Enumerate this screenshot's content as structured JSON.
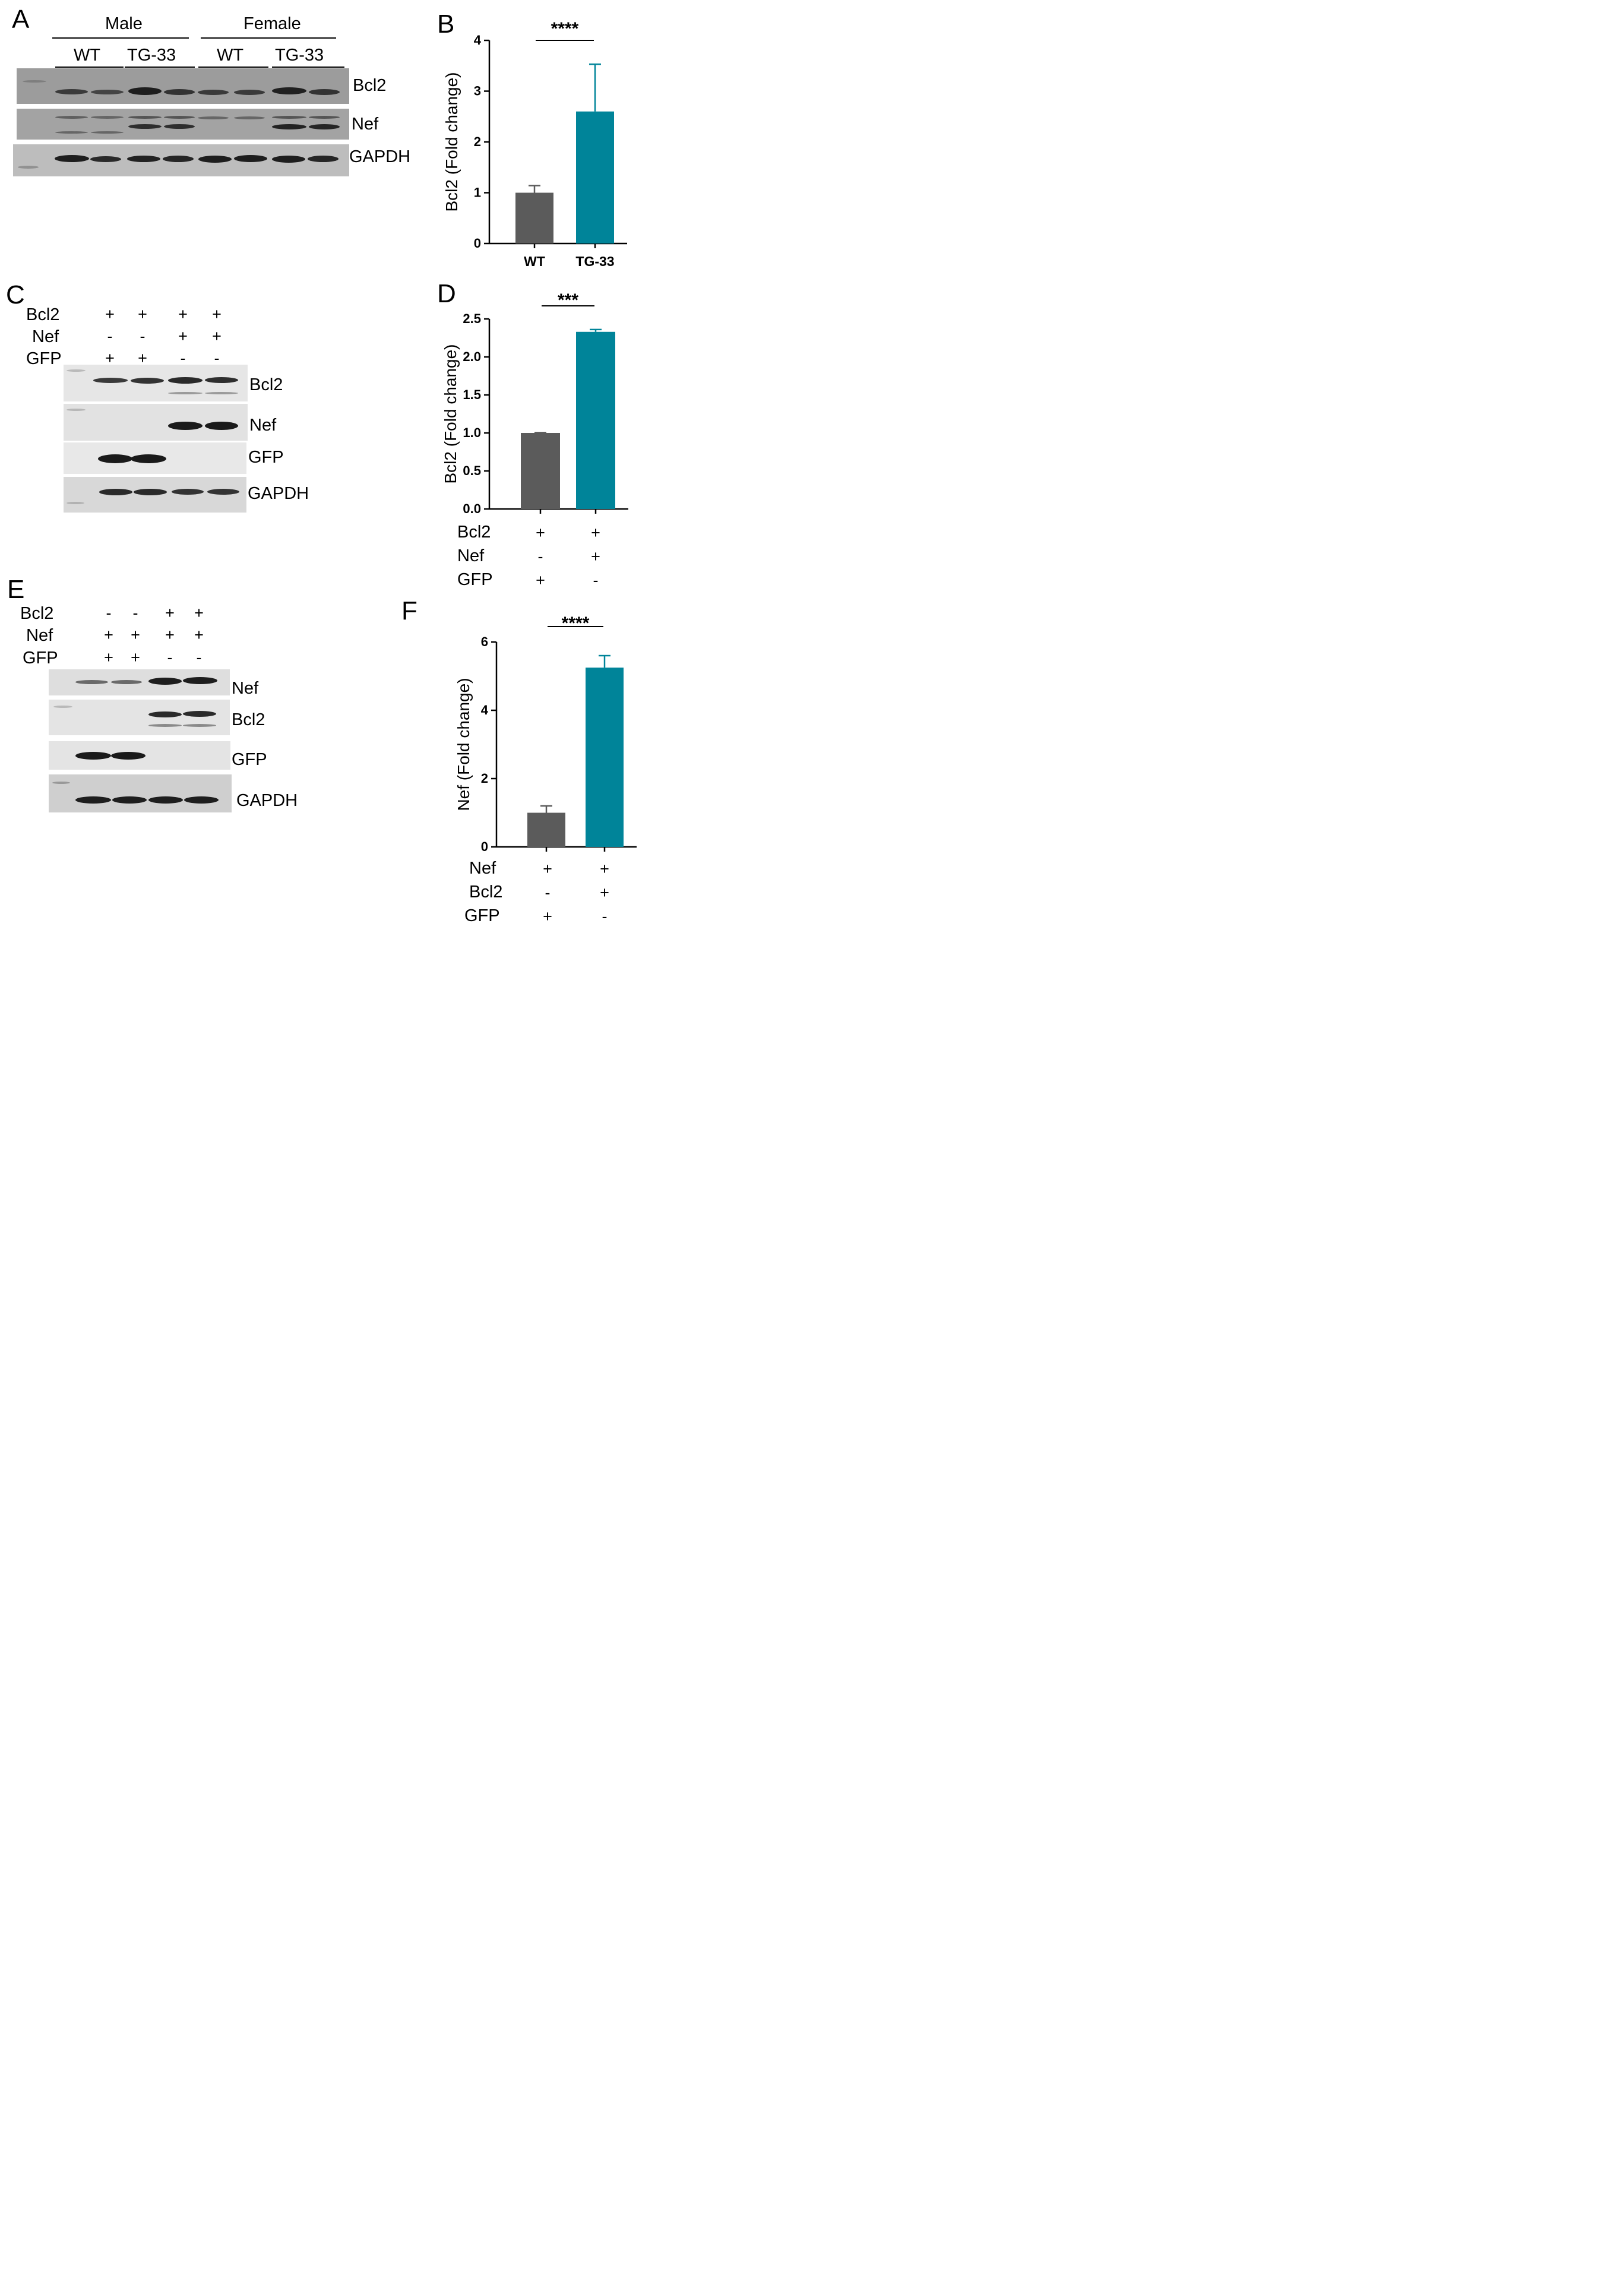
{
  "panels": {
    "A": {
      "letter": "A",
      "sex_groups": [
        "Male",
        "Female"
      ],
      "genotypes": [
        "WT",
        "TG-33",
        "WT",
        "TG-33"
      ],
      "blots": [
        "Bcl2",
        "Nef",
        "GAPDH"
      ]
    },
    "B": {
      "letter": "B",
      "significance": "****"
    },
    "C": {
      "letter": "C",
      "conditions": [
        {
          "name": "Bcl2",
          "signs": [
            "+",
            "+",
            "+",
            "+"
          ]
        },
        {
          "name": "Nef",
          "signs": [
            "-",
            "-",
            "+",
            "+"
          ]
        },
        {
          "name": "GFP",
          "signs": [
            "+",
            "+",
            "-",
            "-"
          ]
        }
      ],
      "blots": [
        "Bcl2",
        "Nef",
        "GFP",
        "GAPDH"
      ]
    },
    "D": {
      "letter": "D",
      "significance": "***",
      "conditions": [
        {
          "name": "Bcl2",
          "signs": [
            "+",
            "+"
          ]
        },
        {
          "name": "Nef",
          "signs": [
            "-",
            "+"
          ]
        },
        {
          "name": "GFP",
          "signs": [
            "+",
            "-"
          ]
        }
      ]
    },
    "E": {
      "letter": "E",
      "conditions": [
        {
          "name": "Bcl2",
          "signs": [
            "-",
            "-",
            "+",
            "+"
          ]
        },
        {
          "name": "Nef",
          "signs": [
            "+",
            "+",
            "+",
            "+"
          ]
        },
        {
          "name": "GFP",
          "signs": [
            "+",
            "+",
            "-",
            "-"
          ]
        }
      ],
      "blots": [
        "Nef",
        "Bcl2",
        "GFP",
        "GAPDH"
      ]
    },
    "F": {
      "letter": "F",
      "significance": "****",
      "conditions": [
        {
          "name": "Nef",
          "signs": [
            "+",
            "+"
          ]
        },
        {
          "name": "Bcl2",
          "signs": [
            "-",
            "+"
          ]
        },
        {
          "name": "GFP",
          "signs": [
            "+",
            "-"
          ]
        }
      ]
    }
  },
  "colors": {
    "bar_control": "#5b5b5b",
    "bar_treatment": "#008499"
  },
  "chart_data": [
    {
      "panel": "B",
      "type": "bar",
      "categories": [
        "WT",
        "TG-33"
      ],
      "values": [
        1.0,
        2.6
      ],
      "error": [
        0.14,
        0.93
      ],
      "ylabel": "Bcl2 (Fold change)",
      "ylim": [
        0,
        4
      ],
      "yticks": [
        "0",
        "1",
        "2",
        "3",
        "4"
      ],
      "ytick_values": [
        0,
        1,
        2,
        3,
        4
      ],
      "show_xlabels": true,
      "grid": false
    },
    {
      "panel": "D",
      "type": "bar",
      "categories": [
        "Bcl2+Nef-GFP+",
        "Bcl2+Nef+GFP-"
      ],
      "values": [
        1.0,
        2.33
      ],
      "error": [
        0.005,
        0.03
      ],
      "ylabel": "Bcl2 (Fold change)",
      "ylim": [
        0,
        2.5
      ],
      "yticks": [
        "0.0",
        "0.5",
        "1.0",
        "1.5",
        "2.0",
        "2.5"
      ],
      "ytick_values": [
        0,
        0.5,
        1.0,
        1.5,
        2.0,
        2.5
      ],
      "show_xlabels": false,
      "grid": false
    },
    {
      "panel": "F",
      "type": "bar",
      "categories": [
        "Nef+Bcl2-GFP+",
        "Nef+Bcl2+GFP-"
      ],
      "values": [
        1.0,
        5.25
      ],
      "error": [
        0.2,
        0.35
      ],
      "ylabel": "Nef (Fold change)",
      "ylim": [
        0,
        6
      ],
      "yticks": [
        "0",
        "2",
        "4",
        "6"
      ],
      "ytick_values": [
        0,
        2,
        4,
        6
      ],
      "show_xlabels": false,
      "grid": false
    }
  ]
}
